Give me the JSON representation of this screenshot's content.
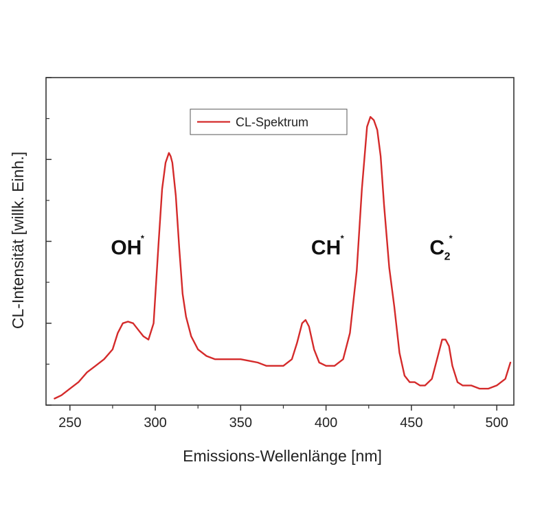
{
  "chart_data": {
    "type": "line",
    "xlabel": "Emissions-Wellenlänge [nm]",
    "ylabel": "CL-Intensität [willk. Einh.]",
    "xlim": [
      236,
      510
    ],
    "ylim": [
      0,
      1
    ],
    "x_ticks": [
      250,
      300,
      350,
      400,
      450,
      500
    ],
    "y_tick_labels_shown": false,
    "grid": false,
    "legend": {
      "placement": "top-center",
      "entries": [
        "CL-Spektrum"
      ]
    },
    "series": [
      {
        "name": "CL-Spektrum",
        "color": "#d42a2a",
        "x": [
          241,
          245,
          250,
          255,
          260,
          265,
          270,
          275,
          278,
          281,
          284,
          287,
          290,
          293,
          296,
          299,
          302,
          304,
          306,
          308,
          309,
          310,
          312,
          314,
          316,
          318,
          321,
          325,
          330,
          335,
          340,
          345,
          350,
          355,
          360,
          365,
          370,
          375,
          380,
          383,
          386,
          388,
          390,
          393,
          396,
          400,
          405,
          410,
          414,
          418,
          421,
          424,
          426,
          428,
          430,
          432,
          434,
          437,
          440,
          443,
          446,
          449,
          452,
          455,
          458,
          462,
          465,
          468,
          470,
          472,
          474,
          477,
          480,
          485,
          490,
          495,
          500,
          505,
          508
        ],
        "values": [
          0.02,
          0.03,
          0.05,
          0.07,
          0.1,
          0.12,
          0.14,
          0.17,
          0.22,
          0.25,
          0.255,
          0.25,
          0.23,
          0.21,
          0.2,
          0.25,
          0.5,
          0.66,
          0.74,
          0.77,
          0.76,
          0.74,
          0.64,
          0.48,
          0.34,
          0.27,
          0.21,
          0.17,
          0.15,
          0.14,
          0.14,
          0.14,
          0.14,
          0.135,
          0.13,
          0.12,
          0.12,
          0.12,
          0.14,
          0.19,
          0.25,
          0.26,
          0.24,
          0.17,
          0.13,
          0.12,
          0.12,
          0.14,
          0.22,
          0.41,
          0.66,
          0.85,
          0.88,
          0.87,
          0.84,
          0.76,
          0.61,
          0.42,
          0.3,
          0.16,
          0.09,
          0.07,
          0.07,
          0.06,
          0.06,
          0.08,
          0.14,
          0.2,
          0.2,
          0.18,
          0.12,
          0.07,
          0.06,
          0.06,
          0.05,
          0.05,
          0.06,
          0.08,
          0.13
        ]
      }
    ],
    "annotations": [
      {
        "id": "oh",
        "text": "OH",
        "sup": "*",
        "sub": "",
        "x": 283,
        "y": 0.46
      },
      {
        "id": "ch",
        "text": "CH",
        "sup": "*",
        "sub": "",
        "x": 400,
        "y": 0.46
      },
      {
        "id": "c2",
        "text": "C",
        "sup": "*",
        "sub": "2",
        "x": 465,
        "y": 0.46
      }
    ]
  }
}
